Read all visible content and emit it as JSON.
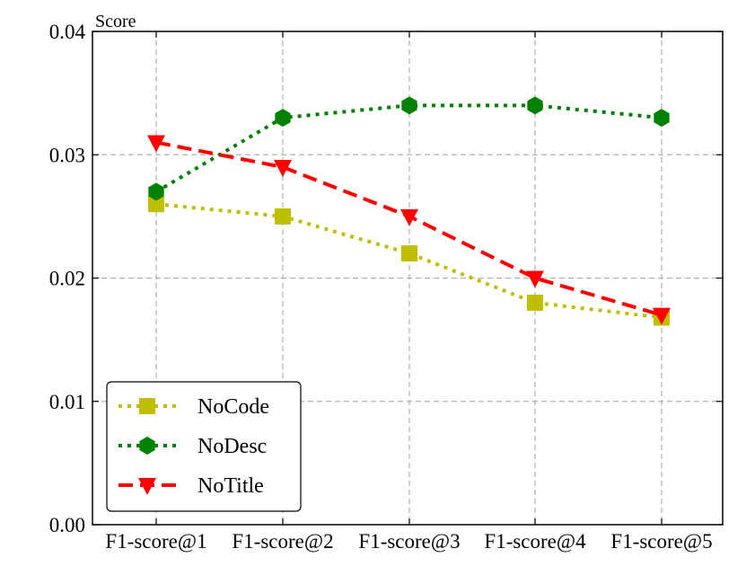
{
  "chart_data": {
    "type": "line",
    "title": "",
    "xlabel": "",
    "ylabel": "Score",
    "categories": [
      "F1-score@1",
      "F1-score@2",
      "F1-score@3",
      "F1-score@4",
      "F1-score@5"
    ],
    "ylim": [
      0.0,
      0.04
    ],
    "yticks": [
      "0.00",
      "0.01",
      "0.02",
      "0.03",
      "0.04"
    ],
    "grid": true,
    "legend_position": "lower-left",
    "series": [
      {
        "name": "NoCode",
        "values": [
          0.026,
          0.025,
          0.022,
          0.018,
          0.0168
        ],
        "color": "#bfbf00",
        "marker": "square",
        "line_style": "dotted"
      },
      {
        "name": "NoDesc",
        "values": [
          0.027,
          0.033,
          0.034,
          0.034,
          0.033
        ],
        "color": "#008000",
        "marker": "hexagon",
        "line_style": "dotted"
      },
      {
        "name": "NoTitle",
        "values": [
          0.031,
          0.029,
          0.025,
          0.02,
          0.017
        ],
        "color": "#ff0000",
        "marker": "triangle-down",
        "line_style": "dashed"
      }
    ]
  }
}
